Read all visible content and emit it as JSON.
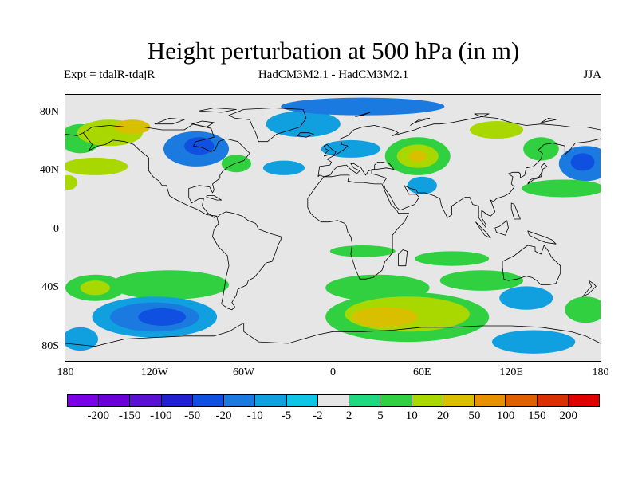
{
  "title": "Height perturbation at 500 hPa (in m)",
  "experiment_label": "Expt = tdalR-tdajR",
  "comparison_label": "HadCM3M2.1 - HadCM3M2.1",
  "season_label": "JJA",
  "map": {
    "projection": "cylindrical-equidistant",
    "background_color": "#e6e6e6",
    "lat_ticks": [
      {
        "value": 80,
        "label": "80N"
      },
      {
        "value": 40,
        "label": "40N"
      },
      {
        "value": 0,
        "label": "0"
      },
      {
        "value": -40,
        "label": "40S"
      },
      {
        "value": -80,
        "label": "80S"
      }
    ],
    "lon_ticks": [
      {
        "value": -180,
        "label": "180"
      },
      {
        "value": -120,
        "label": "120W"
      },
      {
        "value": -60,
        "label": "60W"
      },
      {
        "value": 0,
        "label": "0"
      },
      {
        "value": 60,
        "label": "60E"
      },
      {
        "value": 120,
        "label": "120E"
      },
      {
        "value": 180,
        "label": "180"
      }
    ],
    "anomaly_regions": [
      {
        "lon": -170,
        "lat": 62,
        "rx": 14,
        "ry": 10,
        "level": 5
      },
      {
        "lon": -150,
        "lat": 66,
        "rx": 22,
        "ry": 9,
        "level": 10
      },
      {
        "lon": -135,
        "lat": 70,
        "rx": 12,
        "ry": 5,
        "level": 20
      },
      {
        "lon": -160,
        "lat": 43,
        "rx": 22,
        "ry": 6,
        "level": 10
      },
      {
        "lon": -178,
        "lat": 32,
        "rx": 6,
        "ry": 5,
        "level": 10
      },
      {
        "lon": -92,
        "lat": 55,
        "rx": 22,
        "ry": 12,
        "level": -10
      },
      {
        "lon": -90,
        "lat": 57,
        "rx": 10,
        "ry": 6,
        "level": -20
      },
      {
        "lon": -65,
        "lat": 45,
        "rx": 10,
        "ry": 6,
        "level": 5
      },
      {
        "lon": -33,
        "lat": 42,
        "rx": 14,
        "ry": 5,
        "level": -5
      },
      {
        "lon": -20,
        "lat": 72,
        "rx": 25,
        "ry": 9,
        "level": -5
      },
      {
        "lon": 20,
        "lat": 84,
        "rx": 55,
        "ry": 6,
        "level": -10
      },
      {
        "lon": 12,
        "lat": 55,
        "rx": 20,
        "ry": 6,
        "level": -5
      },
      {
        "lon": 57,
        "lat": 50,
        "rx": 22,
        "ry": 13,
        "level": 5
      },
      {
        "lon": 57,
        "lat": 50,
        "rx": 14,
        "ry": 8,
        "level": 10
      },
      {
        "lon": 57,
        "lat": 50,
        "rx": 6,
        "ry": 4,
        "level": 20
      },
      {
        "lon": 60,
        "lat": 30,
        "rx": 10,
        "ry": 6,
        "level": -5
      },
      {
        "lon": 110,
        "lat": 68,
        "rx": 18,
        "ry": 6,
        "level": 10
      },
      {
        "lon": 140,
        "lat": 55,
        "rx": 12,
        "ry": 8,
        "level": 5
      },
      {
        "lon": 170,
        "lat": 45,
        "rx": 18,
        "ry": 12,
        "level": -10
      },
      {
        "lon": 168,
        "lat": 46,
        "rx": 8,
        "ry": 6,
        "level": -20
      },
      {
        "lon": 155,
        "lat": 28,
        "rx": 28,
        "ry": 6,
        "level": 5
      },
      {
        "lon": 80,
        "lat": -20,
        "rx": 25,
        "ry": 5,
        "level": 5
      },
      {
        "lon": 20,
        "lat": -15,
        "rx": 22,
        "ry": 4,
        "level": 5
      },
      {
        "lon": 100,
        "lat": -35,
        "rx": 28,
        "ry": 7,
        "level": 5
      },
      {
        "lon": 30,
        "lat": -40,
        "rx": 35,
        "ry": 9,
        "level": 5
      },
      {
        "lon": 130,
        "lat": -47,
        "rx": 18,
        "ry": 8,
        "level": -5
      },
      {
        "lon": -110,
        "lat": -38,
        "rx": 40,
        "ry": 10,
        "level": 5
      },
      {
        "lon": -160,
        "lat": -40,
        "rx": 20,
        "ry": 9,
        "level": 5
      },
      {
        "lon": -160,
        "lat": -40,
        "rx": 10,
        "ry": 5,
        "level": 10
      },
      {
        "lon": -120,
        "lat": -60,
        "rx": 42,
        "ry": 14,
        "level": -5
      },
      {
        "lon": -120,
        "lat": -60,
        "rx": 30,
        "ry": 10,
        "level": -10
      },
      {
        "lon": -115,
        "lat": -60,
        "rx": 16,
        "ry": 6,
        "level": -20
      },
      {
        "lon": -170,
        "lat": -75,
        "rx": 12,
        "ry": 8,
        "level": -5
      },
      {
        "lon": 50,
        "lat": -60,
        "rx": 55,
        "ry": 17,
        "level": 5
      },
      {
        "lon": 50,
        "lat": -58,
        "rx": 42,
        "ry": 12,
        "level": 10
      },
      {
        "lon": 35,
        "lat": -60,
        "rx": 22,
        "ry": 7,
        "level": 20
      },
      {
        "lon": 170,
        "lat": -55,
        "rx": 14,
        "ry": 9,
        "level": 5
      },
      {
        "lon": 135,
        "lat": -77,
        "rx": 28,
        "ry": 8,
        "level": -5
      }
    ]
  },
  "colorbar": {
    "colors": [
      "#7a00e6",
      "#6a00d8",
      "#5a10d0",
      "#2020d0",
      "#1050e0",
      "#1a7ae0",
      "#10a0e0",
      "#10c4e8",
      "#e6e6e6",
      "#20d880",
      "#30d040",
      "#a8d800",
      "#d8c000",
      "#e89000",
      "#e06000",
      "#d83000",
      "#e00000"
    ],
    "labels": [
      "-200",
      "-150",
      "-100",
      "-50",
      "-20",
      "-10",
      "-5",
      "-2",
      "2",
      "5",
      "10",
      "20",
      "50",
      "100",
      "150",
      "200"
    ]
  }
}
